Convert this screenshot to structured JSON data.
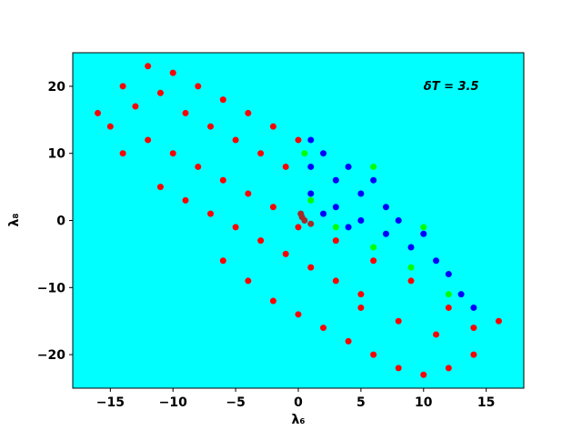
{
  "chart_data": {
    "type": "scatter",
    "annotation": "δT = 3.5",
    "annotation_xy": [
      10,
      20
    ],
    "xlabel": "λ₆",
    "ylabel": "λ₈",
    "background": "#00ffff",
    "xlim": [
      -18,
      18
    ],
    "ylim": [
      -25,
      25
    ],
    "xticks": [
      {
        "value": -15,
        "label": "−15"
      },
      {
        "value": -10,
        "label": "−10"
      },
      {
        "value": -5,
        "label": "−5"
      },
      0,
      5,
      10,
      15
    ],
    "yticks": [
      {
        "value": -20,
        "label": "−20"
      },
      {
        "value": -10,
        "label": "−10"
      },
      0,
      10,
      20
    ],
    "series": [
      {
        "color": "#ff0000",
        "x": [
          -16,
          -14,
          -12,
          -10,
          -8,
          -6,
          -4,
          -2,
          0,
          -15,
          -13,
          -11,
          -9,
          -7,
          -5,
          -3,
          -1,
          -14,
          -12,
          -10,
          -8,
          -6,
          -4,
          -2,
          0,
          -11,
          -9,
          -7,
          -5,
          -3,
          -1,
          1,
          3,
          5,
          -6,
          -4,
          -2,
          0,
          2,
          4,
          6,
          8,
          10,
          12,
          3,
          6,
          9,
          12,
          14,
          16,
          14,
          11,
          8,
          5
        ],
        "y": [
          16,
          20,
          23,
          22,
          20,
          18,
          16,
          14,
          12,
          14,
          17,
          19,
          16,
          14,
          12,
          10,
          8,
          10,
          12,
          10,
          8,
          6,
          4,
          2,
          -1,
          5,
          3,
          1,
          -1,
          -3,
          -5,
          -7,
          -9,
          -11,
          -6,
          -9,
          -12,
          -14,
          -16,
          -18,
          -20,
          -22,
          -23,
          -22,
          -3,
          -6,
          -9,
          -13,
          -16,
          -15,
          -20,
          -17,
          -15,
          -13
        ]
      },
      {
        "color": "#0000ff",
        "x": [
          1,
          1,
          1,
          2,
          3,
          3,
          4,
          5,
          5,
          6,
          7,
          7,
          8,
          9,
          10,
          11,
          12,
          13,
          14,
          2,
          4
        ],
        "y": [
          12,
          8,
          4,
          10,
          6,
          2,
          8,
          4,
          0,
          6,
          2,
          -2,
          0,
          -4,
          -2,
          -6,
          -8,
          -11,
          -13,
          1,
          -1
        ]
      },
      {
        "color": "#00ff00",
        "x": [
          0.5,
          1,
          3,
          6,
          9,
          12,
          6,
          10
        ],
        "y": [
          10,
          3,
          -1,
          -4,
          -7,
          -11,
          8,
          -1
        ]
      },
      {
        "color": "#a52a2a",
        "x": [
          0.2,
          0.5,
          1,
          0.3
        ],
        "y": [
          1,
          0,
          -0.5,
          0.5
        ]
      }
    ]
  }
}
